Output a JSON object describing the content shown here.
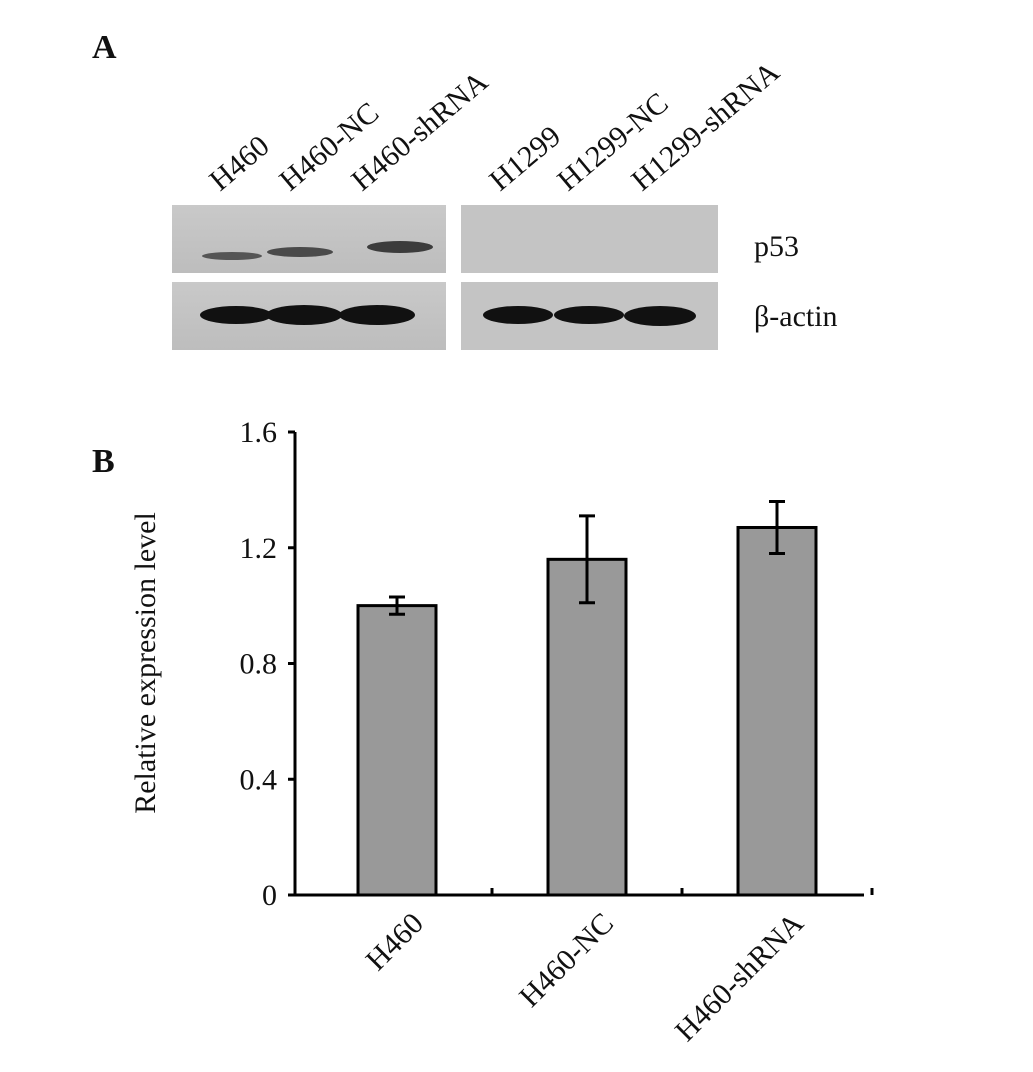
{
  "panel_a": {
    "label": "A",
    "lanes": [
      "H460",
      "H460-NC",
      "H460-shRNA",
      "H1299",
      "H1299-NC",
      "H1299-shRNA"
    ],
    "bands": [
      "p53",
      "β-actin"
    ]
  },
  "panel_b": {
    "label": "B"
  },
  "chart_data": {
    "type": "bar",
    "y_label": "Relative expression level",
    "categories": [
      "H460",
      "H460-NC",
      "H460-shRNA"
    ],
    "values": [
      1.0,
      1.16,
      1.27
    ],
    "errors": [
      0.03,
      0.15,
      0.09
    ],
    "color": "#999999",
    "ylim": [
      0,
      1.6
    ],
    "yticks": [
      0,
      0.4,
      0.8,
      1.2,
      1.6
    ],
    "grid": false
  }
}
